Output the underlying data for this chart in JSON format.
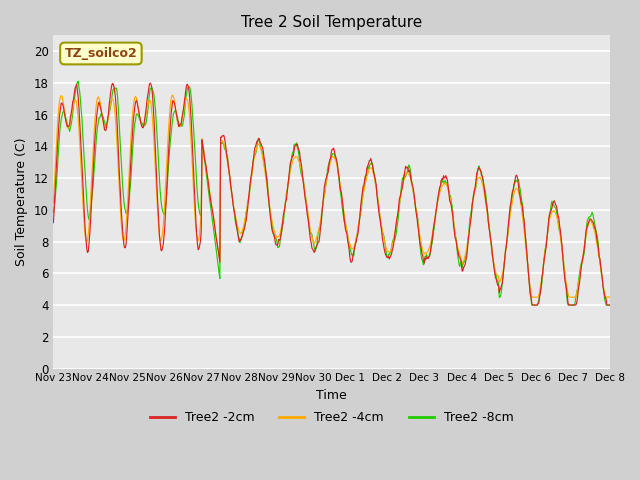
{
  "title": "Tree 2 Soil Temperature",
  "xlabel": "Time",
  "ylabel": "Soil Temperature (C)",
  "ylim": [
    0,
    21
  ],
  "yticks": [
    0,
    2,
    4,
    6,
    8,
    10,
    12,
    14,
    16,
    18,
    20
  ],
  "annotation_text": "TZ_soilco2",
  "line_colors": [
    "#dd2222",
    "#ffaa00",
    "#22cc00"
  ],
  "line_labels": [
    "Tree2 -2cm",
    "Tree2 -4cm",
    "Tree2 -8cm"
  ],
  "xtick_labels": [
    "Nov 23",
    "Nov 24",
    "Nov 25",
    "Nov 26",
    "Nov 27",
    "Nov 28",
    "Nov 29",
    "Nov 30",
    "Dec 1",
    "Dec 2",
    "Dec 3",
    "Dec 4",
    "Dec 5",
    "Dec 6",
    "Dec 7",
    "Dec 8"
  ],
  "fig_bg": "#d0d0d0",
  "ax_bg": "#e8e8e8"
}
